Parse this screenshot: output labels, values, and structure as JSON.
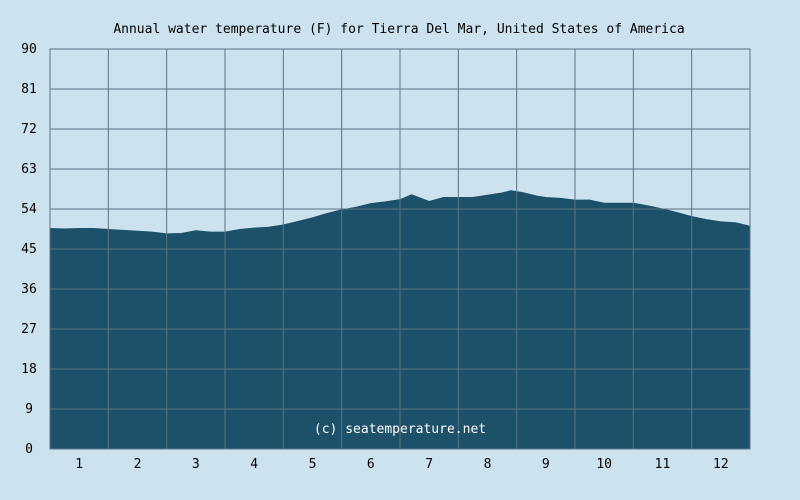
{
  "chart_data": {
    "type": "area",
    "title": "Annual water temperature (F) for Tierra Del Mar, United States of America",
    "xlabel": "",
    "ylabel": "",
    "xlim": [
      0.5,
      12.5
    ],
    "ylim": [
      0,
      90
    ],
    "y_ticks": [
      "0",
      "9",
      "18",
      "27",
      "36",
      "45",
      "54",
      "63",
      "72",
      "81",
      "90"
    ],
    "x_ticks": [
      "1",
      "2",
      "3",
      "4",
      "5",
      "6",
      "7",
      "8",
      "9",
      "10",
      "11",
      "12"
    ],
    "grid": true,
    "colors": {
      "background": "#cce2ef",
      "fill": "#1d5069",
      "grid": "#5a7384"
    },
    "series": [
      {
        "x": [
          0.5,
          0.75,
          1.0,
          1.25,
          1.5,
          1.75,
          2.0,
          2.25,
          2.5,
          2.75,
          3.0,
          3.25,
          3.5,
          3.75,
          4.0,
          4.25,
          4.5,
          4.75,
          5.0,
          5.25,
          5.5,
          5.75,
          6.0,
          6.25,
          6.5,
          6.7,
          7.0,
          7.25,
          7.5,
          7.75,
          8.0,
          8.25,
          8.4,
          8.6,
          8.85,
          9.0,
          9.25,
          9.5,
          9.75,
          10.0,
          10.25,
          10.5,
          10.75,
          11.0,
          11.25,
          11.5,
          11.75,
          12.0,
          12.25,
          12.5
        ],
        "y": [
          49.6,
          49.5,
          49.6,
          49.6,
          49.4,
          49.2,
          49.0,
          48.8,
          48.4,
          48.5,
          49.1,
          48.8,
          48.8,
          49.4,
          49.7,
          49.9,
          50.4,
          51.2,
          52.0,
          53.0,
          53.8,
          54.4,
          55.2,
          55.6,
          56.1,
          57.2,
          55.7,
          56.6,
          56.6,
          56.6,
          57.1,
          57.6,
          58.1,
          57.7,
          56.9,
          56.6,
          56.4,
          56.0,
          56.0,
          55.3,
          55.3,
          55.3,
          54.7,
          54.0,
          53.2,
          52.3,
          51.6,
          51.1,
          50.9,
          50.1
        ]
      }
    ]
  },
  "watermark": "(c) seatemperature.net"
}
